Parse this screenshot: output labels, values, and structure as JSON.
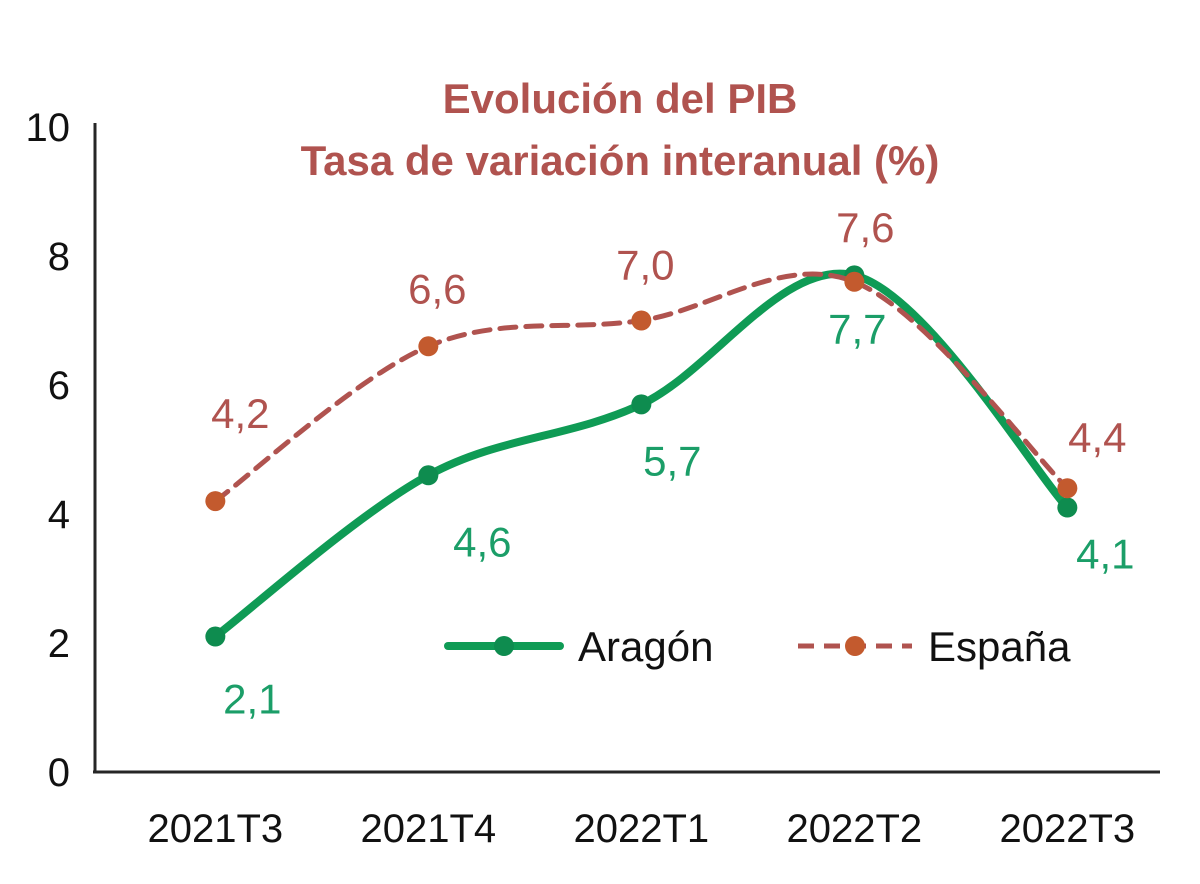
{
  "chart_data": {
    "type": "line",
    "title": "Evolución del PIB",
    "subtitle": "Tasa de variación interanual (%)",
    "title_color": "#b0534f",
    "axis_color": "#262626",
    "categories": [
      "2021T3",
      "2021T4",
      "2022T1",
      "2022T2",
      "2022T3"
    ],
    "series": [
      {
        "name": "Aragón",
        "values": [
          2.1,
          4.6,
          5.7,
          7.7,
          4.1
        ],
        "point_labels": [
          "2,1",
          "4,6",
          "5,7",
          "7,7",
          "4,1"
        ],
        "color": "#0f9b55",
        "marker_color": "#0e8c4f",
        "label_color": "#1b9e68",
        "style": "solid"
      },
      {
        "name": "España",
        "values": [
          4.2,
          6.6,
          7.0,
          7.6,
          4.4
        ],
        "point_labels": [
          "4,2",
          "6,6",
          "7,0",
          "7,6",
          "4,4"
        ],
        "color": "#b0534f",
        "marker_color": "#c35a2e",
        "label_color": "#b0534f",
        "style": "dashed"
      }
    ],
    "ylim": [
      0,
      10
    ],
    "yticks": [
      0,
      2,
      4,
      6,
      8,
      10
    ],
    "grid": false,
    "legend_position": "inside-bottom-center"
  }
}
